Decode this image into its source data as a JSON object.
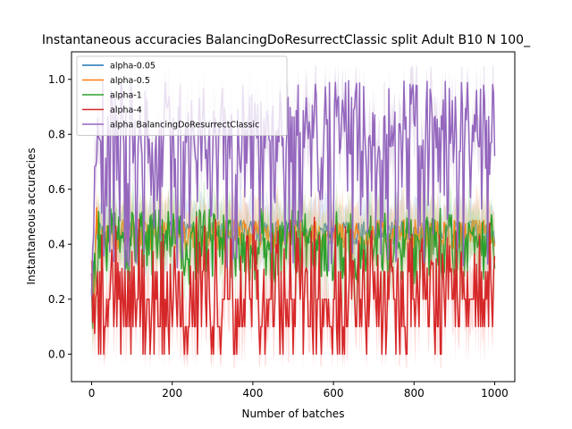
{
  "chart_data": {
    "type": "line",
    "title": "Instantaneous accuracies BalancingDoResurrectClassic split Adult B10 N 100_",
    "xlabel": "Number of batches",
    "ylabel": "Instantaneous accuracies",
    "xlim": [
      -50,
      1050
    ],
    "ylim": [
      -0.1,
      1.1
    ],
    "xticks": [
      0,
      200,
      400,
      600,
      800,
      1000
    ],
    "yticks": [
      0.0,
      0.2,
      0.4,
      0.6,
      0.8,
      1.0
    ],
    "grid": false,
    "legend_placement": "top-left",
    "x_range": [
      0,
      1000
    ],
    "series": [
      {
        "name": "alpha-0.05",
        "color": "#1f77b4",
        "band_color": "#aec7e8",
        "mean": 0.45,
        "low": 0.4,
        "high": 0.49,
        "start": 0.2
      },
      {
        "name": "alpha-0.5",
        "color": "#ff7f0e",
        "band_color": "#ffbb78",
        "mean": 0.44,
        "low": 0.38,
        "high": 0.49,
        "start": 0.2
      },
      {
        "name": "alpha-1",
        "color": "#2ca02c",
        "band_color": "#98df8a",
        "mean": 0.34,
        "low": 0.1,
        "high": 0.53,
        "start": 0.2
      },
      {
        "name": "alpha-4",
        "color": "#d62728",
        "band_color": "#ff9896",
        "mean": 0.22,
        "low": 0.0,
        "high": 0.5,
        "start": 0.2
      },
      {
        "name": "alpha BalancingDoResurrectClassic",
        "color": "#9467bd",
        "band_color": "#c5b0d5",
        "mean": 0.78,
        "low": 0.3,
        "high": 1.0,
        "start": 0.3
      }
    ]
  }
}
